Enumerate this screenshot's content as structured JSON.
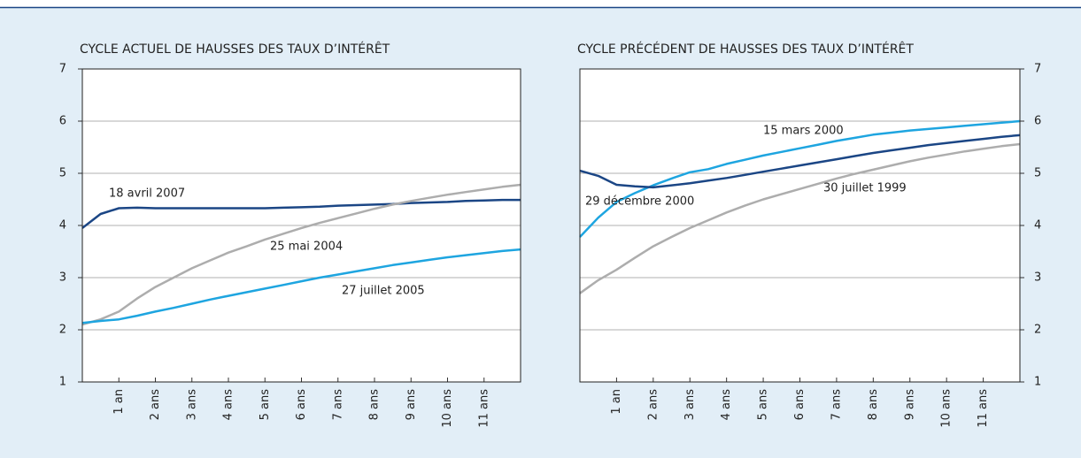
{
  "chart_data": [
    {
      "type": "line",
      "title": "CYCLE ACTUEL DE HAUSSES DES TAUX D’INTÉRÊT",
      "y_side": "left",
      "x": [
        0,
        0.5,
        1,
        1.5,
        2,
        2.5,
        3,
        3.5,
        4,
        4.5,
        5,
        5.5,
        6,
        6.5,
        7,
        7.5,
        8,
        8.5,
        9,
        9.5,
        10,
        10.5,
        11,
        11.5,
        12
      ],
      "xlim": [
        0,
        12
      ],
      "xticks": [
        {
          "value": 1,
          "label": "1 an"
        },
        {
          "value": 2,
          "label": "2 ans"
        },
        {
          "value": 3,
          "label": "3 ans"
        },
        {
          "value": 4,
          "label": "4 ans"
        },
        {
          "value": 5,
          "label": "5 ans"
        },
        {
          "value": 6,
          "label": "6 ans"
        },
        {
          "value": 7,
          "label": "7 ans"
        },
        {
          "value": 8,
          "label": "8 ans"
        },
        {
          "value": 9,
          "label": "9 ans"
        },
        {
          "value": 10,
          "label": "10 ans"
        },
        {
          "value": 11,
          "label": "11 ans"
        }
      ],
      "ylim": [
        1,
        7
      ],
      "yticks": [
        1,
        2,
        3,
        4,
        5,
        6,
        7
      ],
      "grid": true,
      "series": [
        {
          "name": "18 avril 2007",
          "color": "#1b4685",
          "values": [
            3.95,
            4.22,
            4.33,
            4.34,
            4.33,
            4.33,
            4.33,
            4.33,
            4.33,
            4.33,
            4.33,
            4.34,
            4.35,
            4.36,
            4.38,
            4.39,
            4.4,
            4.41,
            4.43,
            4.44,
            4.45,
            4.47,
            4.48,
            4.49,
            4.49
          ]
        },
        {
          "name": "25 mai 2004",
          "color": "#adadad",
          "values": [
            2.1,
            2.2,
            2.35,
            2.6,
            2.82,
            3.0,
            3.18,
            3.33,
            3.48,
            3.6,
            3.73,
            3.84,
            3.95,
            4.05,
            4.14,
            4.23,
            4.32,
            4.4,
            4.47,
            4.53,
            4.59,
            4.64,
            4.69,
            4.74,
            4.78
          ]
        },
        {
          "name": "27 juillet 2005",
          "color": "#1ea5e0",
          "values": [
            2.13,
            2.17,
            2.2,
            2.27,
            2.35,
            2.42,
            2.5,
            2.58,
            2.65,
            2.72,
            2.79,
            2.86,
            2.93,
            3.0,
            3.06,
            3.12,
            3.18,
            3.24,
            3.29,
            3.34,
            3.39,
            3.43,
            3.47,
            3.51,
            3.54
          ]
        }
      ]
    },
    {
      "type": "line",
      "title": "CYCLE PRÉCÉDENT DE HAUSSES DES TAUX D’INTÉRÊT",
      "y_side": "right",
      "x": [
        0,
        0.5,
        1,
        1.5,
        2,
        2.5,
        3,
        3.5,
        4,
        4.5,
        5,
        5.5,
        6,
        6.5,
        7,
        7.5,
        8,
        8.5,
        9,
        9.5,
        10,
        10.5,
        11,
        11.5,
        12
      ],
      "xlim": [
        0,
        12
      ],
      "xticks": [
        {
          "value": 1,
          "label": "1 an"
        },
        {
          "value": 2,
          "label": "2 ans"
        },
        {
          "value": 3,
          "label": "3 ans"
        },
        {
          "value": 4,
          "label": "4 ans"
        },
        {
          "value": 5,
          "label": "5 ans"
        },
        {
          "value": 6,
          "label": "6 ans"
        },
        {
          "value": 7,
          "label": "7 ans"
        },
        {
          "value": 8,
          "label": "8 ans"
        },
        {
          "value": 9,
          "label": "9 ans"
        },
        {
          "value": 10,
          "label": "10 ans"
        },
        {
          "value": 11,
          "label": "11 ans"
        }
      ],
      "ylim": [
        1,
        7
      ],
      "yticks": [
        1,
        2,
        3,
        4,
        5,
        6,
        7
      ],
      "grid": true,
      "series": [
        {
          "name": "15 mars 2000",
          "color": "#1ea5e0",
          "values": [
            3.78,
            4.15,
            4.45,
            4.62,
            4.77,
            4.9,
            5.02,
            5.08,
            5.18,
            5.26,
            5.34,
            5.41,
            5.48,
            5.55,
            5.62,
            5.68,
            5.74,
            5.78,
            5.82,
            5.85,
            5.88,
            5.91,
            5.94,
            5.97,
            6.0
          ]
        },
        {
          "name": "29 décembre 2000",
          "color": "#1b4685",
          "values": [
            5.05,
            4.95,
            4.78,
            4.75,
            4.73,
            4.77,
            4.81,
            4.86,
            4.91,
            4.97,
            5.03,
            5.09,
            5.15,
            5.21,
            5.27,
            5.33,
            5.39,
            5.44,
            5.49,
            5.54,
            5.58,
            5.62,
            5.66,
            5.7,
            5.73
          ]
        },
        {
          "name": "30 juillet 1999",
          "color": "#adadad",
          "values": [
            2.7,
            2.95,
            3.15,
            3.38,
            3.6,
            3.78,
            3.95,
            4.1,
            4.25,
            4.38,
            4.5,
            4.6,
            4.7,
            4.8,
            4.9,
            4.99,
            5.07,
            5.15,
            5.23,
            5.3,
            5.36,
            5.42,
            5.47,
            5.52,
            5.56
          ]
        }
      ]
    }
  ]
}
